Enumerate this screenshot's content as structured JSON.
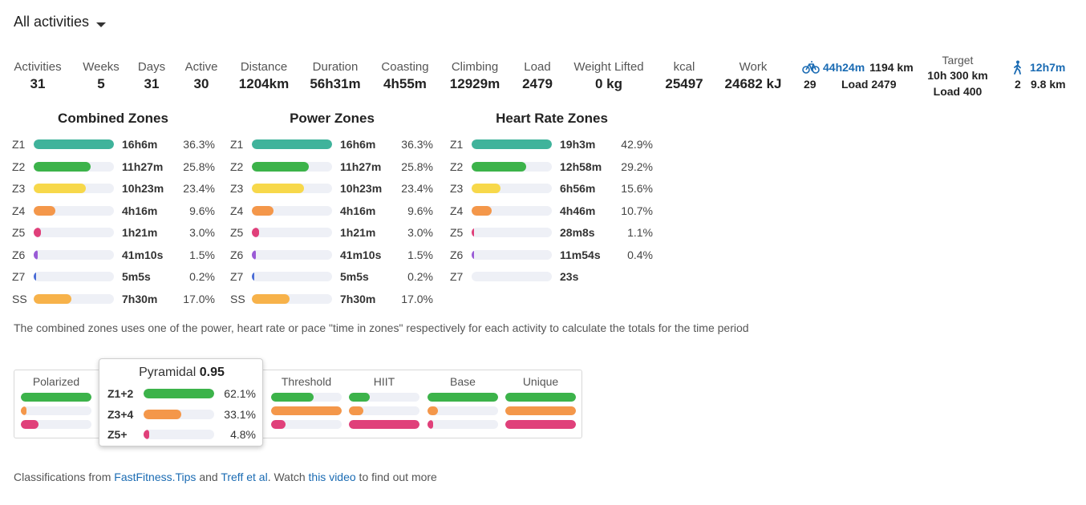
{
  "filter": {
    "label": "All activities"
  },
  "stats": [
    {
      "label": "Activities",
      "value": "31"
    },
    {
      "label": "Weeks",
      "value": "5"
    },
    {
      "label": "Days",
      "value": "31"
    },
    {
      "label": "Active",
      "value": "30"
    },
    {
      "label": "Distance",
      "value": "1204km"
    },
    {
      "label": "Duration",
      "value": "56h31m"
    },
    {
      "label": "Coasting",
      "value": "4h55m"
    },
    {
      "label": "Climbing",
      "value": "12929m"
    },
    {
      "label": "Load",
      "value": "2479"
    },
    {
      "label": "Weight Lifted",
      "value": "0 kg"
    },
    {
      "label": "kcal",
      "value": "25497"
    },
    {
      "label": "Work",
      "value": "24682 kJ"
    }
  ],
  "ride": {
    "icon": "bicycle-icon",
    "duration": "44h24m",
    "distance": "1194 km",
    "count": "29",
    "load": "Load 2479"
  },
  "target": {
    "label": "Target",
    "line1": "10h 300 km",
    "line2": "Load 400"
  },
  "walk": {
    "icon": "walking-icon",
    "duration": "12h7m",
    "count": "2",
    "distance": "9.8 km"
  },
  "zone_colors": {
    "Z1": "#3fb39b",
    "Z2": "#3cb34a",
    "Z3": "#f7d84a",
    "Z4": "#f4974a",
    "Z5": "#e0407a",
    "Z6": "#9a5bd6",
    "Z7": "#4a6cd6",
    "SS": "#f7b24a"
  },
  "zones": [
    {
      "title": "Combined Zones",
      "rows": [
        {
          "zone": "Z1",
          "time": "16h6m",
          "pct": "36.3%",
          "fill": 1.0
        },
        {
          "zone": "Z2",
          "time": "11h27m",
          "pct": "25.8%",
          "fill": 0.71
        },
        {
          "zone": "Z3",
          "time": "10h23m",
          "pct": "23.4%",
          "fill": 0.65
        },
        {
          "zone": "Z4",
          "time": "4h16m",
          "pct": "9.6%",
          "fill": 0.27
        },
        {
          "zone": "Z5",
          "time": "1h21m",
          "pct": "3.0%",
          "fill": 0.09
        },
        {
          "zone": "Z6",
          "time": "41m10s",
          "pct": "1.5%",
          "fill": 0.05
        },
        {
          "zone": "Z7",
          "time": "5m5s",
          "pct": "0.2%",
          "fill": 0.01
        },
        {
          "zone": "SS",
          "time": "7h30m",
          "pct": "17.0%",
          "fill": 0.47
        }
      ]
    },
    {
      "title": "Power Zones",
      "rows": [
        {
          "zone": "Z1",
          "time": "16h6m",
          "pct": "36.3%",
          "fill": 1.0
        },
        {
          "zone": "Z2",
          "time": "11h27m",
          "pct": "25.8%",
          "fill": 0.71
        },
        {
          "zone": "Z3",
          "time": "10h23m",
          "pct": "23.4%",
          "fill": 0.65
        },
        {
          "zone": "Z4",
          "time": "4h16m",
          "pct": "9.6%",
          "fill": 0.27
        },
        {
          "zone": "Z5",
          "time": "1h21m",
          "pct": "3.0%",
          "fill": 0.09
        },
        {
          "zone": "Z6",
          "time": "41m10s",
          "pct": "1.5%",
          "fill": 0.05
        },
        {
          "zone": "Z7",
          "time": "5m5s",
          "pct": "0.2%",
          "fill": 0.01
        },
        {
          "zone": "SS",
          "time": "7h30m",
          "pct": "17.0%",
          "fill": 0.47
        }
      ]
    },
    {
      "title": "Heart Rate Zones",
      "rows": [
        {
          "zone": "Z1",
          "time": "19h3m",
          "pct": "42.9%",
          "fill": 1.0
        },
        {
          "zone": "Z2",
          "time": "12h58m",
          "pct": "29.2%",
          "fill": 0.68
        },
        {
          "zone": "Z3",
          "time": "6h56m",
          "pct": "15.6%",
          "fill": 0.36
        },
        {
          "zone": "Z4",
          "time": "4h46m",
          "pct": "10.7%",
          "fill": 0.25
        },
        {
          "zone": "Z5",
          "time": "28m8s",
          "pct": "1.1%",
          "fill": 0.03
        },
        {
          "zone": "Z6",
          "time": "11m54s",
          "pct": "0.4%",
          "fill": 0.01
        },
        {
          "zone": "Z7",
          "time": "23s",
          "pct": "",
          "fill": 0.0
        }
      ]
    }
  ],
  "note": "The combined zones uses one of the power, heart rate or pace \"time in zones\" respectively for each activity to calculate the totals for the time period",
  "classifications": [
    {
      "name": "Polarized",
      "fills": [
        1.0,
        0.08,
        0.25
      ]
    },
    {
      "name": "Pyramidal",
      "fills": [
        1.0,
        0.55,
        0.08
      ]
    },
    {
      "name": "Threshold",
      "fills": [
        0.6,
        1.0,
        0.2
      ]
    },
    {
      "name": "HIIT",
      "fills": [
        0.3,
        0.2,
        1.0
      ]
    },
    {
      "name": "Base",
      "fills": [
        1.0,
        0.15,
        0.08
      ]
    },
    {
      "name": "Unique",
      "fills": [
        1.0,
        1.0,
        1.0
      ]
    }
  ],
  "class_colors": [
    "#3cb34a",
    "#f4974a",
    "#e0407a"
  ],
  "tooltip": {
    "name": "Pyramidal",
    "score": "0.95",
    "rows": [
      {
        "label": "Z1+2",
        "pct": "62.1%",
        "fill": 1.0
      },
      {
        "label": "Z3+4",
        "pct": "33.1%",
        "fill": 0.53
      },
      {
        "label": "Z5+",
        "pct": "4.8%",
        "fill": 0.08
      }
    ]
  },
  "footer": {
    "prefix": "Classifications from ",
    "link1": "FastFitness.Tips",
    "and": " and ",
    "link2": "Treff et al",
    "mid": ". Watch ",
    "link3": "this video",
    "suffix": " to find out more"
  }
}
